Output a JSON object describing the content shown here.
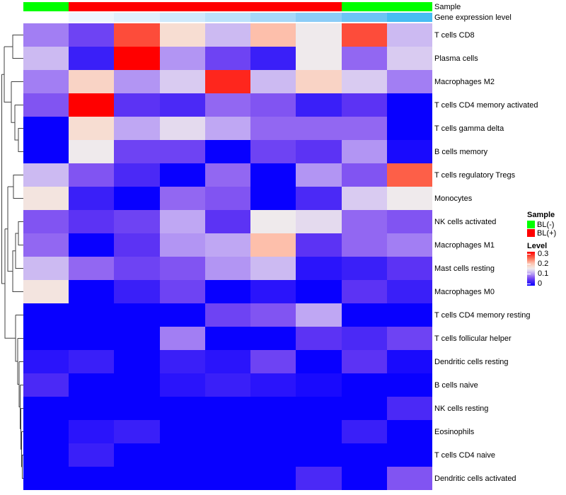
{
  "annotation_bars": {
    "sample": {
      "label": "Sample",
      "colors": [
        "#00FF00",
        "#FF0000",
        "#FF0000",
        "#FF0000",
        "#FF0000",
        "#FF0000",
        "#FF0000",
        "#00FF00",
        "#00FF00"
      ]
    },
    "gene_level": {
      "label": "Gene expression level",
      "colors": [
        "#FFFFFF",
        "#EDF6FE",
        "#DFF0FD",
        "#CFE9FC",
        "#BCE1FB",
        "#A6D8F9",
        "#8CCDF7",
        "#6CC4F5",
        "#47BDF3"
      ]
    }
  },
  "legend": {
    "sample_title": "Sample",
    "sample_items": [
      {
        "label": "BL(-)",
        "color": "#00FF00"
      },
      {
        "label": "BL(+)",
        "color": "#FF0000"
      }
    ],
    "level_title": "Level",
    "level_ticks": [
      {
        "label": "0.3",
        "value": 0.3
      },
      {
        "label": "0.2",
        "value": 0.2
      },
      {
        "label": "0.1",
        "value": 0.1
      },
      {
        "label": "0",
        "value": 0
      }
    ]
  },
  "chart_data": {
    "type": "heatmap",
    "rows": [
      "T cells CD8",
      "Plasma cells",
      "Macrophages M2",
      "T cells CD4 memory activated",
      "T cells gamma delta",
      "B cells memory",
      "T cells regulatory  Tregs",
      "Monocytes",
      "NK cells activated",
      "Macrophages M1",
      "Mast cells resting",
      "Macrophages M0",
      "T cells CD4 memory resting",
      "T cells follicular helper",
      "Dendritic cells resting",
      "B cells naive",
      "NK cells resting",
      "Eosinophils",
      "T cells CD4 naive",
      "Dendritic cells activated"
    ],
    "n_columns": 9,
    "column_sample_groups": [
      "BL(-)",
      "BL(+)",
      "BL(+)",
      "BL(+)",
      "BL(+)",
      "BL(+)",
      "BL(+)",
      "BL(-)",
      "BL(-)"
    ],
    "values": [
      [
        0.09,
        0.06,
        0.26,
        0.17,
        0.12,
        0.2,
        0.15,
        0.26,
        0.12
      ],
      [
        0.12,
        0.03,
        0.3,
        0.1,
        0.06,
        0.03,
        0.15,
        0.08,
        0.13
      ],
      [
        0.09,
        0.18,
        0.1,
        0.13,
        0.28,
        0.12,
        0.18,
        0.13,
        0.09
      ],
      [
        0.07,
        0.3,
        0.05,
        0.04,
        0.08,
        0.07,
        0.03,
        0.05,
        0.0
      ],
      [
        0.0,
        0.17,
        0.11,
        0.14,
        0.11,
        0.08,
        0.08,
        0.08,
        0.0
      ],
      [
        0.0,
        0.15,
        0.06,
        0.06,
        0.0,
        0.06,
        0.05,
        0.1,
        0.01
      ],
      [
        0.12,
        0.07,
        0.04,
        0.0,
        0.08,
        0.0,
        0.1,
        0.07,
        0.25
      ],
      [
        0.16,
        0.03,
        0.0,
        0.08,
        0.07,
        0.0,
        0.04,
        0.13,
        0.15
      ],
      [
        0.07,
        0.05,
        0.06,
        0.11,
        0.05,
        0.15,
        0.14,
        0.08,
        0.07
      ],
      [
        0.08,
        0.0,
        0.05,
        0.1,
        0.11,
        0.2,
        0.05,
        0.08,
        0.09
      ],
      [
        0.12,
        0.08,
        0.06,
        0.07,
        0.1,
        0.12,
        0.02,
        0.03,
        0.05
      ],
      [
        0.16,
        0.0,
        0.03,
        0.06,
        0.0,
        0.02,
        0.0,
        0.05,
        0.03
      ],
      [
        0.0,
        0.0,
        0.0,
        0.0,
        0.06,
        0.07,
        0.11,
        0.0,
        0.0
      ],
      [
        0.0,
        0.0,
        0.0,
        0.09,
        0.0,
        0.0,
        0.05,
        0.04,
        0.06
      ],
      [
        0.02,
        0.03,
        0.0,
        0.03,
        0.02,
        0.06,
        0.0,
        0.05,
        0.01
      ],
      [
        0.04,
        0.0,
        0.0,
        0.02,
        0.03,
        0.02,
        0.01,
        0.0,
        0.0
      ],
      [
        0.0,
        0.0,
        0.0,
        0.0,
        0.0,
        0.0,
        0.0,
        0.0,
        0.04
      ],
      [
        0.0,
        0.02,
        0.03,
        0.0,
        0.0,
        0.0,
        0.0,
        0.03,
        0.0
      ],
      [
        0.0,
        0.03,
        0.0,
        0.0,
        0.0,
        0.0,
        0.0,
        0.0,
        0.0
      ],
      [
        0.0,
        0.0,
        0.0,
        0.0,
        0.0,
        0.0,
        0.04,
        0.0,
        0.07
      ]
    ],
    "value_range": [
      0,
      0.3
    ],
    "colormap_stops": [
      {
        "value": 0,
        "color": "#0800FF"
      },
      {
        "value": 0.05,
        "color": "#5C33F4"
      },
      {
        "value": 0.075,
        "color": "#8A5CF2"
      },
      {
        "value": 0.1,
        "color": "#B295F3"
      },
      {
        "value": 0.125,
        "color": "#D3C3F2"
      },
      {
        "value": 0.15,
        "color": "#EFEAEC"
      },
      {
        "value": 0.17,
        "color": "#F7DDD2"
      },
      {
        "value": 0.2,
        "color": "#FDBFAB"
      },
      {
        "value": 0.24,
        "color": "#FC7257"
      },
      {
        "value": 0.3,
        "color": "#FF0000"
      }
    ],
    "row_dendrogram_position": "left",
    "legend_position": "right"
  }
}
